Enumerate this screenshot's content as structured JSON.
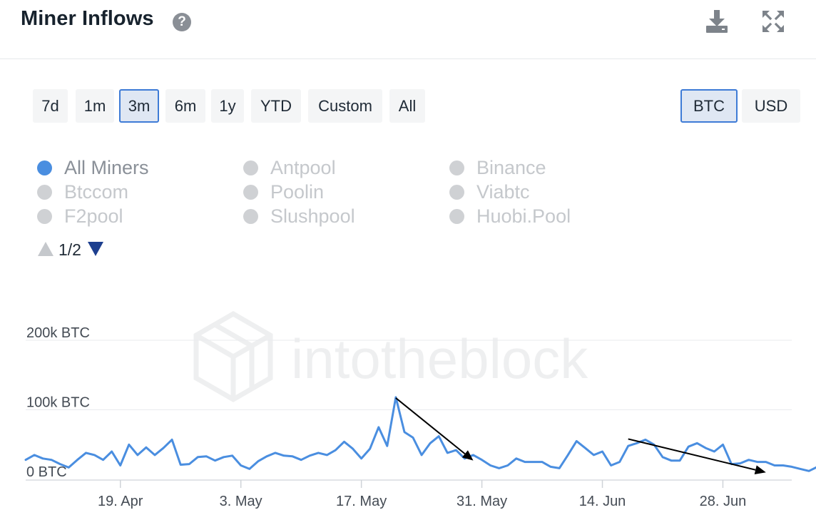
{
  "header": {
    "title": "Miner Inflows",
    "help_glyph": "?",
    "download_icon": "download-icon",
    "expand_icon": "expand-icon"
  },
  "ranges": [
    "7d",
    "1m",
    "3m",
    "6m",
    "1y",
    "YTD",
    "Custom",
    "All"
  ],
  "active_range": "3m",
  "units": [
    "BTC",
    "USD"
  ],
  "active_unit": "BTC",
  "legend": {
    "items": [
      {
        "label": "All Miners",
        "active": true
      },
      {
        "label": "Antpool",
        "active": false
      },
      {
        "label": "Binance",
        "active": false
      },
      {
        "label": "Btccom",
        "active": false
      },
      {
        "label": "Poolin",
        "active": false
      },
      {
        "label": "Viabtc",
        "active": false
      },
      {
        "label": "F2pool",
        "active": false
      },
      {
        "label": "Slushpool",
        "active": false
      },
      {
        "label": "Huobi.Pool",
        "active": false
      }
    ],
    "page_text": "1/2"
  },
  "colors": {
    "series": "#4a8ee0",
    "accent": "#3e7bd6",
    "grid": "#e9ebee",
    "arrow": "#000000"
  },
  "chart_data": {
    "type": "line",
    "ylabel": "",
    "ylim": [
      0,
      200000
    ],
    "y_ticks": [
      {
        "value": 0,
        "label": "0 BTC"
      },
      {
        "value": 100000,
        "label": "100k BTC"
      },
      {
        "value": 200000,
        "label": "200k BTC"
      }
    ],
    "x_range": [
      "2021-04-08",
      "2021-07-06"
    ],
    "x_ticks": [
      {
        "date": "2021-04-19",
        "label": "19. Apr"
      },
      {
        "date": "2021-05-03",
        "label": "3. May"
      },
      {
        "date": "2021-05-17",
        "label": "17. May"
      },
      {
        "date": "2021-05-31",
        "label": "31. May"
      },
      {
        "date": "2021-06-14",
        "label": "14. Jun"
      },
      {
        "date": "2021-06-28",
        "label": "28. Jun"
      }
    ],
    "series": [
      {
        "name": "All Miners",
        "start_date": "2021-04-08",
        "values": [
          28000,
          35000,
          30000,
          28000,
          22000,
          17000,
          28000,
          38000,
          35000,
          28000,
          40000,
          20000,
          50000,
          35000,
          46000,
          35000,
          45000,
          57000,
          21000,
          22000,
          32000,
          33000,
          27000,
          32000,
          34000,
          20000,
          15000,
          26000,
          33000,
          38000,
          34000,
          33000,
          28000,
          34000,
          38000,
          35000,
          42000,
          54000,
          44000,
          30000,
          44000,
          75000,
          48000,
          118000,
          68000,
          60000,
          35000,
          52000,
          62000,
          38000,
          42000,
          30000,
          35000,
          28000,
          20000,
          16000,
          20000,
          30000,
          25000,
          25000,
          25000,
          18000,
          16000,
          35000,
          55000,
          45000,
          35000,
          40000,
          20000,
          25000,
          48000,
          52000,
          57000,
          50000,
          32000,
          27000,
          27000,
          47000,
          52000,
          45000,
          40000,
          50000,
          22000,
          23000,
          28000,
          25000,
          25000,
          20000,
          20000,
          18000,
          15000,
          12000,
          18000,
          17000
        ]
      }
    ],
    "annotations": [
      {
        "type": "arrow",
        "from": {
          "date": "2021-05-21",
          "value": 117000
        },
        "to": {
          "date": "2021-05-30",
          "value": 27000
        }
      },
      {
        "type": "arrow",
        "from": {
          "date": "2021-06-17",
          "value": 58000
        },
        "to": {
          "date": "2021-07-03",
          "value": 10000
        }
      }
    ],
    "watermark": "intotheblock",
    "grid": true,
    "legend": "top-left"
  }
}
